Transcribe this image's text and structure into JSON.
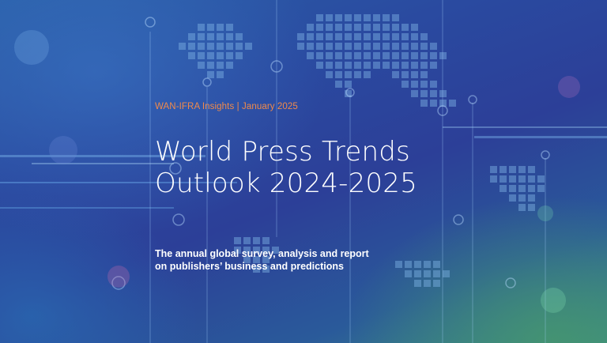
{
  "kicker": "WAN-IFRA Insights | January 2025",
  "title": {
    "line1": "World Press Trends",
    "line2": "Outlook 2024-2025"
  },
  "subtitle": {
    "line1": "The annual global survey, analysis and report",
    "line2": "on publishers’ business and predictions"
  },
  "colors": {
    "kicker": "#f08a4b",
    "title": "#ffffff",
    "background_primary": "#2c3f98",
    "background_accent": "#3a8a88"
  }
}
